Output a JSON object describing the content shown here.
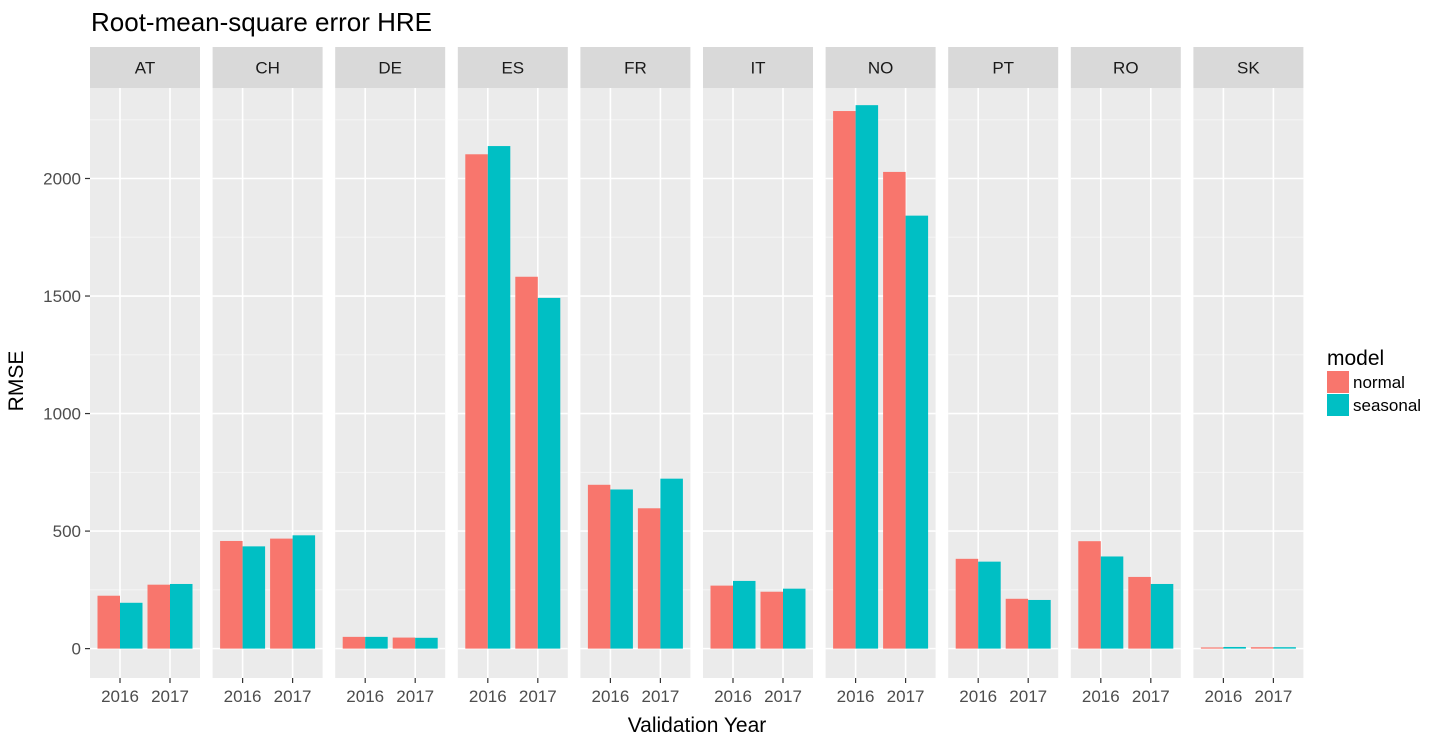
{
  "chart_data": {
    "type": "bar",
    "title": "Root-mean-square error HRE",
    "xlabel": "Validation Year",
    "ylabel": "RMSE",
    "facets": [
      "AT",
      "CH",
      "DE",
      "ES",
      "FR",
      "IT",
      "NO",
      "PT",
      "RO",
      "SK"
    ],
    "categories": [
      "2016",
      "2017"
    ],
    "ylim": [
      -125,
      2385
    ],
    "yticks": [
      0,
      500,
      1000,
      1500,
      2000
    ],
    "grid": true,
    "legend": {
      "title": "model",
      "position": "right",
      "entries": [
        {
          "name": "normal",
          "color": "#F8766D"
        },
        {
          "name": "seasonal",
          "color": "#00BFC4"
        }
      ]
    },
    "series": [
      {
        "name": "normal",
        "color": "#F8766D",
        "values": {
          "AT": [
            225,
            272
          ],
          "CH": [
            458,
            468
          ],
          "DE": [
            50,
            47
          ],
          "ES": [
            2103,
            1582
          ],
          "FR": [
            697,
            597
          ],
          "IT": [
            268,
            242
          ],
          "NO": [
            2287,
            2028
          ],
          "PT": [
            382,
            212
          ],
          "RO": [
            457,
            305
          ],
          "SK": [
            5,
            6
          ]
        }
      },
      {
        "name": "seasonal",
        "color": "#00BFC4",
        "values": {
          "AT": [
            195,
            275
          ],
          "CH": [
            435,
            482
          ],
          "DE": [
            50,
            46
          ],
          "ES": [
            2138,
            1492
          ],
          "FR": [
            677,
            723
          ],
          "IT": [
            288,
            255
          ],
          "NO": [
            2312,
            1842
          ],
          "PT": [
            370,
            207
          ],
          "RO": [
            392,
            275
          ],
          "SK": [
            7,
            6
          ]
        }
      }
    ]
  }
}
